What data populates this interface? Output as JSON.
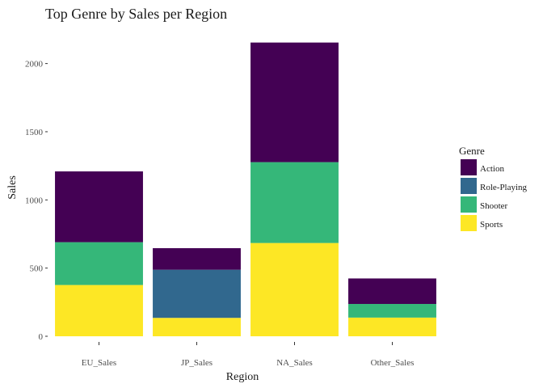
{
  "chart_data": {
    "type": "bar",
    "stacked": true,
    "title": "Top Genre by Sales per Region",
    "xlabel": "Region",
    "ylabel": "Sales",
    "ylim": [
      0,
      2300
    ],
    "yticks": [
      0,
      500,
      1000,
      1500,
      2000
    ],
    "grid": false,
    "legend": {
      "title": "Genre",
      "position": "right"
    },
    "categories": [
      "EU_Sales",
      "JP_Sales",
      "NA_Sales",
      "Other_Sales"
    ],
    "series": [
      {
        "name": "Action",
        "color": "#440154",
        "values": [
          519,
          158,
          877,
          187
        ]
      },
      {
        "name": "Role-Playing",
        "color": "#31688e",
        "values": [
          0,
          353,
          0,
          0
        ]
      },
      {
        "name": "Shooter",
        "color": "#35b779",
        "values": [
          314,
          0,
          593,
          100
        ]
      },
      {
        "name": "Sports",
        "color": "#fde725",
        "values": [
          376,
          135,
          684,
          137
        ]
      }
    ]
  }
}
